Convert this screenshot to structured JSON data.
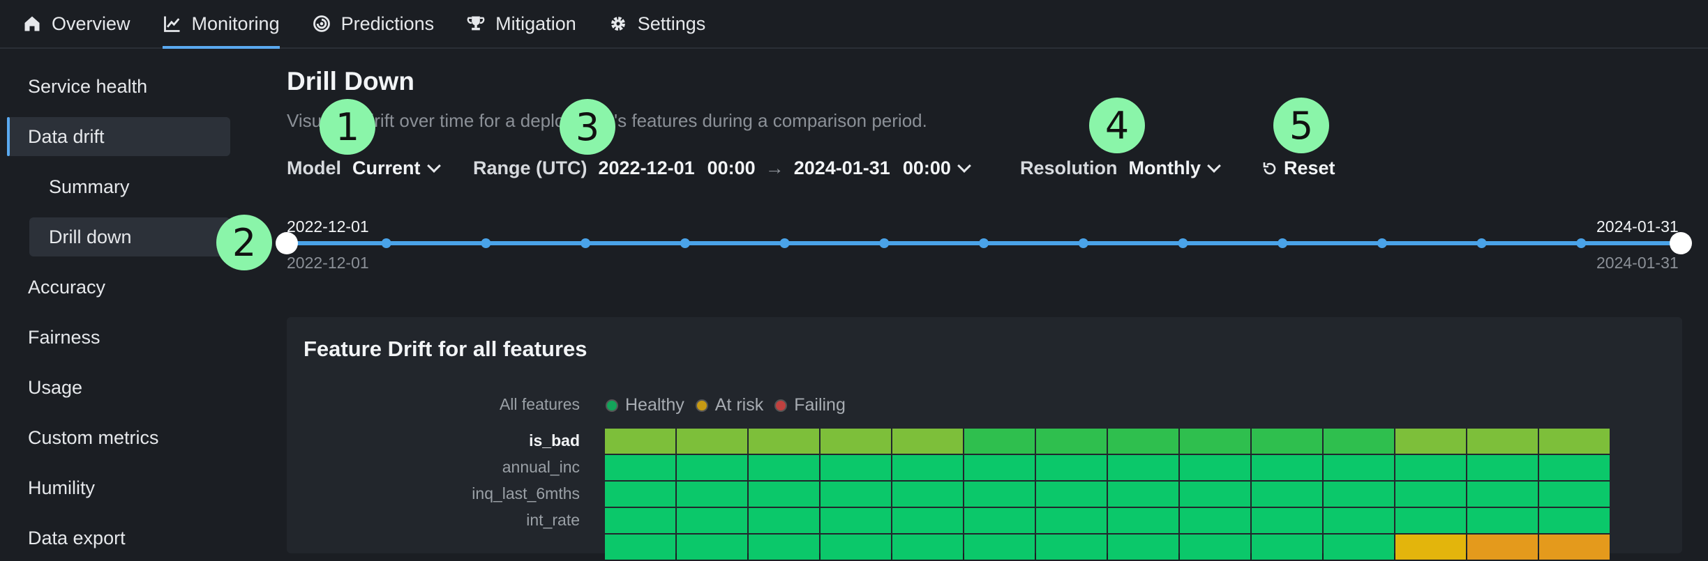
{
  "nav": {
    "tabs": [
      {
        "label": "Overview",
        "icon": "home-icon"
      },
      {
        "label": "Monitoring",
        "icon": "chart-line-icon"
      },
      {
        "label": "Predictions",
        "icon": "predictions-icon"
      },
      {
        "label": "Mitigation",
        "icon": "trophy-icon"
      },
      {
        "label": "Settings",
        "icon": "gear-icon"
      }
    ],
    "active": "Monitoring"
  },
  "sidebar": {
    "items": [
      {
        "label": "Service health"
      },
      {
        "label": "Data drift"
      },
      {
        "label": "Summary"
      },
      {
        "label": "Drill down"
      },
      {
        "label": "Accuracy"
      },
      {
        "label": "Fairness"
      },
      {
        "label": "Usage"
      },
      {
        "label": "Custom metrics"
      },
      {
        "label": "Humility"
      },
      {
        "label": "Data export"
      }
    ]
  },
  "page": {
    "title": "Drill Down",
    "subtitle": "Visualize drift over time for a deployment's features during a comparison period."
  },
  "controls": {
    "model_label": "Model",
    "model_value": "Current",
    "range_label": "Range (UTC)",
    "range_start_date": "2022-12-01",
    "range_start_time": "00:00",
    "range_end_date": "2024-01-31",
    "range_end_time": "00:00",
    "resolution_label": "Resolution",
    "resolution_value": "Monthly",
    "reset_label": "Reset"
  },
  "badges": [
    "1",
    "2",
    "3",
    "4",
    "5"
  ],
  "timeline": {
    "start_top": "2022-12-01",
    "start_bottom": "2022-12-01",
    "end_top": "2024-01-31",
    "end_bottom": "2024-01-31",
    "tick_count": 13
  },
  "card": {
    "title": "Feature Drift for all features",
    "all_features_label": "All features",
    "legend": [
      {
        "label": "Healthy",
        "color": "#13a35a"
      },
      {
        "label": "At risk",
        "color": "#c79a14"
      },
      {
        "label": "Failing",
        "color": "#c0413f"
      }
    ],
    "rows": [
      {
        "label": "is_bad",
        "bold": true,
        "cells": [
          "#7dbf3a",
          "#7dbf3a",
          "#7dbf3a",
          "#7dbf3a",
          "#7dbf3a",
          "#2fbf4e",
          "#2fbf4e",
          "#2fbf4e",
          "#2fbf4e",
          "#2fbf4e",
          "#2fbf4e",
          "#7dbf3a",
          "#7dbf3a",
          "#7dbf3a"
        ]
      },
      {
        "label": "annual_inc",
        "bold": false,
        "cells": [
          "#0bc86a",
          "#0bc86a",
          "#0bc86a",
          "#0bc86a",
          "#0bc86a",
          "#0bc86a",
          "#0bc86a",
          "#0bc86a",
          "#0bc86a",
          "#0bc86a",
          "#0bc86a",
          "#0bc86a",
          "#0bc86a",
          "#0bc86a"
        ]
      },
      {
        "label": "inq_last_6mths",
        "bold": false,
        "cells": [
          "#0bc86a",
          "#0bc86a",
          "#0bc86a",
          "#0bc86a",
          "#0bc86a",
          "#0bc86a",
          "#0bc86a",
          "#0bc86a",
          "#0bc86a",
          "#0bc86a",
          "#0bc86a",
          "#0bc86a",
          "#0bc86a",
          "#0bc86a"
        ]
      },
      {
        "label": "int_rate",
        "bold": false,
        "cells": [
          "#0bc86a",
          "#0bc86a",
          "#0bc86a",
          "#0bc86a",
          "#0bc86a",
          "#0bc86a",
          "#0bc86a",
          "#0bc86a",
          "#0bc86a",
          "#0bc86a",
          "#0bc86a",
          "#0bc86a",
          "#0bc86a",
          "#0bc86a"
        ]
      },
      {
        "label": "",
        "bold": false,
        "cells": [
          "#0bc86a",
          "#0bc86a",
          "#0bc86a",
          "#0bc86a",
          "#0bc86a",
          "#0bc86a",
          "#0bc86a",
          "#0bc86a",
          "#0bc86a",
          "#0bc86a",
          "#0bc86a",
          "#e3b50c",
          "#e49a1c",
          "#e49a1c"
        ]
      }
    ]
  }
}
